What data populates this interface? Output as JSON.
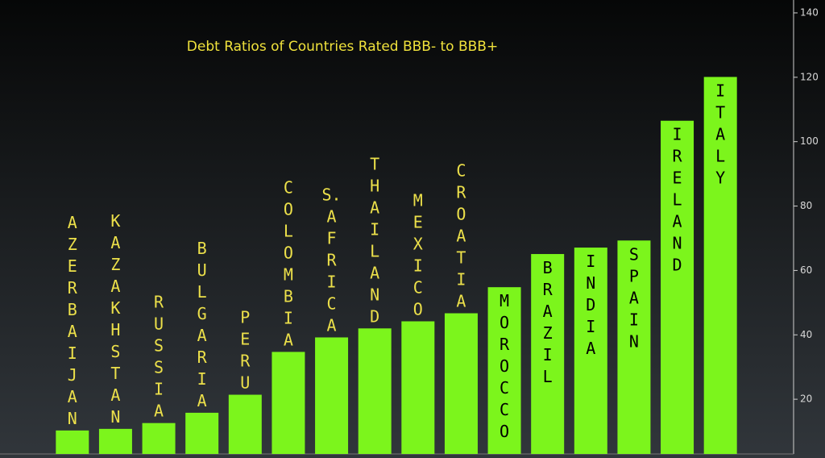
{
  "chart_data": {
    "type": "bar",
    "title": "Debt Ratios of Countries Rated BBB- to BBB+",
    "categories": [
      "AZERBAIJAN",
      "KAZAKHSTAN",
      "RUSSIA",
      "BULGARIA",
      "PERU",
      "COLOMBIA",
      "S. AFRICA",
      "THAILAND",
      "MEXICO",
      "CROATIA",
      "MOROCCO",
      "BRAZIL",
      "INDIA",
      "SPAIN",
      "IRELAND",
      "ITALY"
    ],
    "values": [
      10.3,
      10.8,
      12.6,
      15.8,
      21.4,
      34.7,
      39.2,
      42,
      44.2,
      46.7,
      54.8,
      65.1,
      67.1,
      69.3,
      106.5,
      120.1
    ],
    "color": "#7cf51c",
    "ylim": [
      3,
      144
    ],
    "yticks": [
      20,
      40,
      60,
      80,
      100,
      120,
      140
    ],
    "grid": false
  }
}
